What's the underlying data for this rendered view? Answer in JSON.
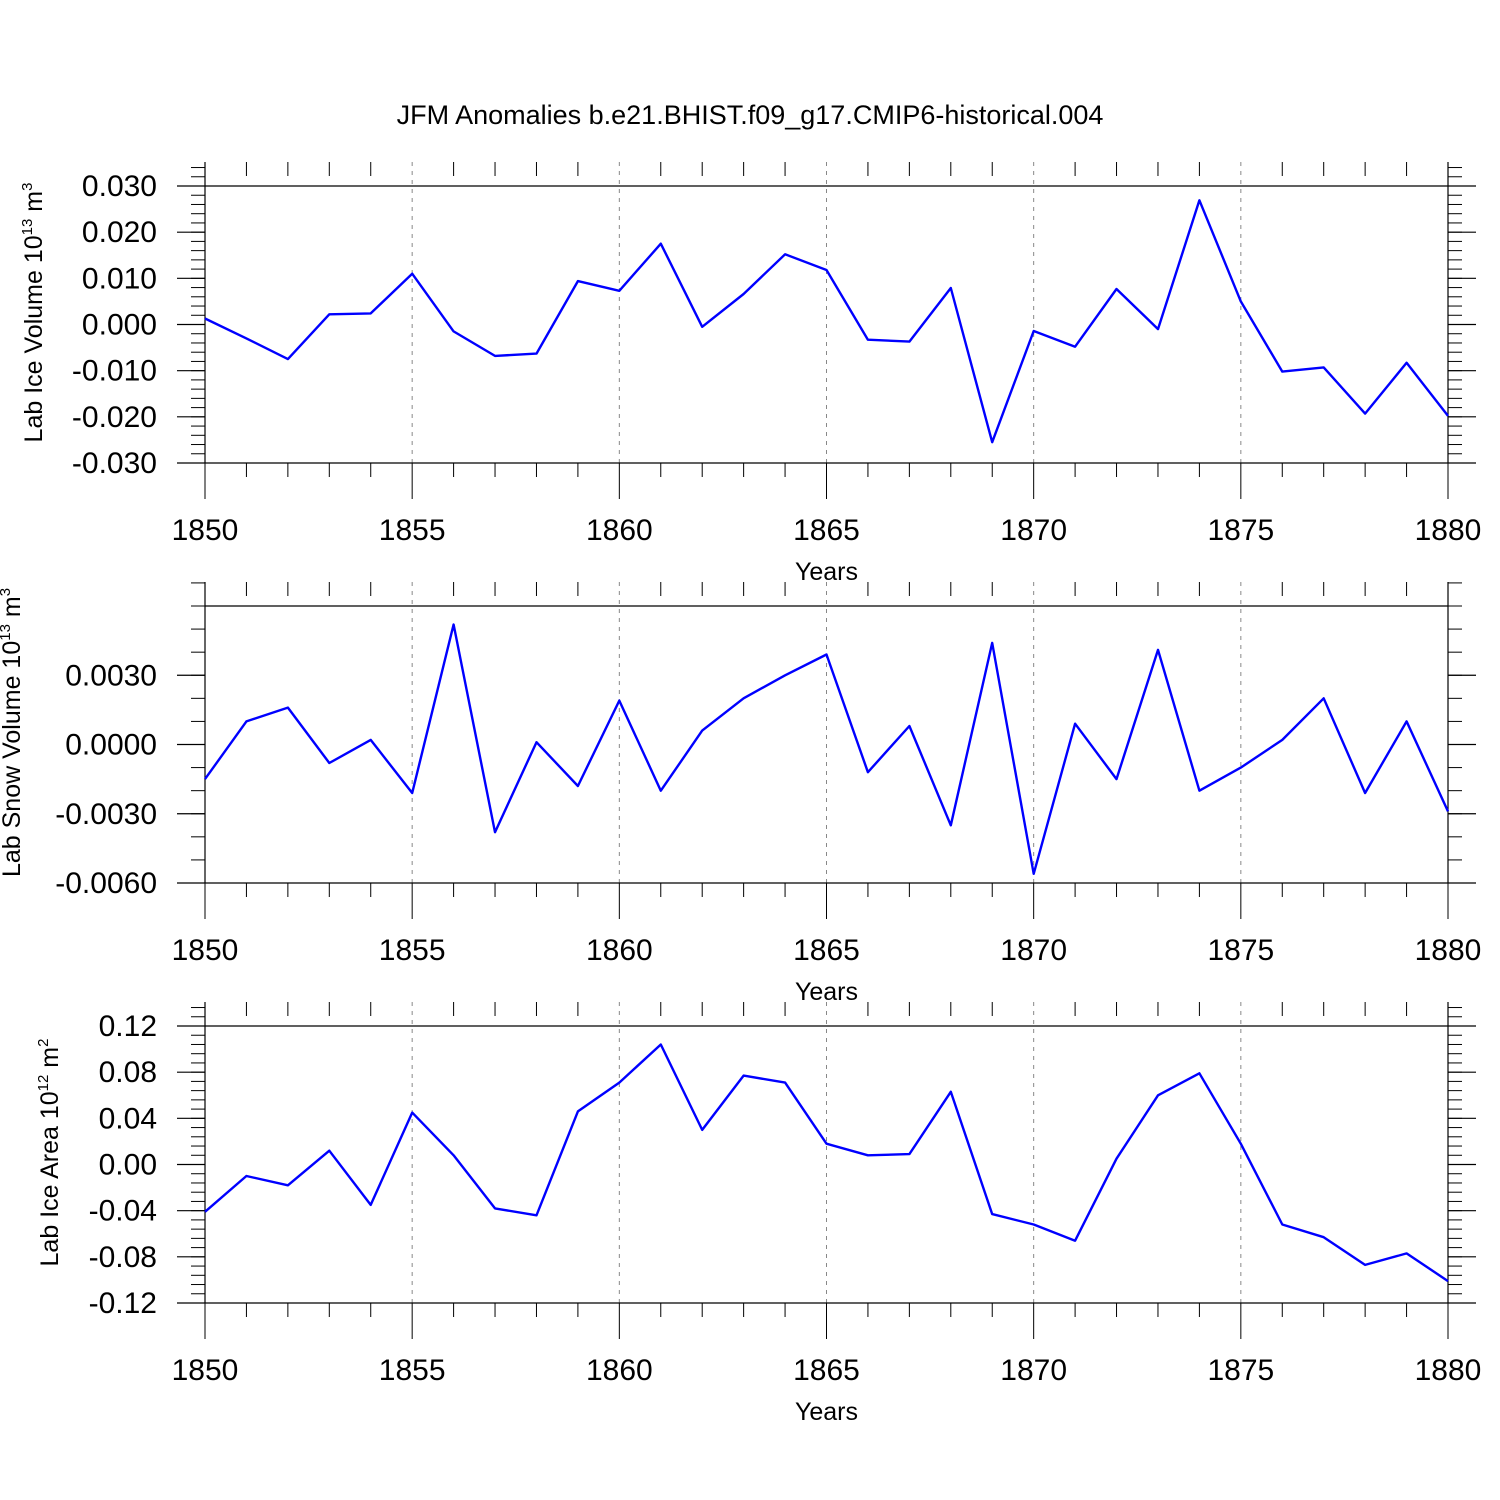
{
  "title": "JFM Anomalies b.e21.BHIST.f09_g17.CMIP6-historical.004",
  "colors": {
    "series": "#0000ff",
    "axis": "#000000",
    "gridline": "#888888"
  },
  "chart_data": [
    {
      "type": "line",
      "xlabel": "Years",
      "ylabel": {
        "text": "Lab Ice Volume 10",
        "exp": "13",
        "unit": " m",
        "unit_exp": "3"
      },
      "x": [
        1850,
        1851,
        1852,
        1853,
        1854,
        1855,
        1856,
        1857,
        1858,
        1859,
        1860,
        1861,
        1862,
        1863,
        1864,
        1865,
        1866,
        1867,
        1868,
        1869,
        1870,
        1871,
        1872,
        1873,
        1874,
        1875,
        1876,
        1877,
        1878,
        1879,
        1880
      ],
      "series": [
        {
          "values": [
            0.0013,
            -0.003,
            -0.0075,
            0.0022,
            0.0024,
            0.011,
            -0.0015,
            -0.0068,
            -0.0063,
            0.0094,
            0.0073,
            0.0175,
            -0.0005,
            0.0066,
            0.0152,
            0.0118,
            -0.0033,
            -0.0037,
            0.0079,
            -0.0255,
            -0.0014,
            -0.0048,
            0.0077,
            -0.001,
            0.0269,
            0.005,
            -0.0102,
            -0.0093,
            -0.0193,
            -0.0083,
            -0.0198
          ]
        }
      ],
      "xlim": [
        1850,
        1880
      ],
      "ylim": [
        -0.03,
        0.03
      ],
      "xticks": [
        "1850",
        "1855",
        "1860",
        "1865",
        "1870",
        "1875",
        "1880"
      ],
      "yticks": [
        "0.030",
        "0.020",
        "0.010",
        "0.000",
        "-0.010",
        "-0.020",
        "-0.030"
      ],
      "ytick_values": [
        0.03,
        0.02,
        0.01,
        0.0,
        -0.01,
        -0.02,
        -0.03
      ],
      "yminor_step": 0.002,
      "grid": "vertical dashed at labeled years"
    },
    {
      "type": "line",
      "xlabel": "Years",
      "ylabel": {
        "text": "Lab Snow Volume 10",
        "exp": "13",
        "unit": " m",
        "unit_exp": "3"
      },
      "x": [
        1850,
        1851,
        1852,
        1853,
        1854,
        1855,
        1856,
        1857,
        1858,
        1859,
        1860,
        1861,
        1862,
        1863,
        1864,
        1865,
        1866,
        1867,
        1868,
        1869,
        1870,
        1871,
        1872,
        1873,
        1874,
        1875,
        1876,
        1877,
        1878,
        1879,
        1880
      ],
      "series": [
        {
          "values": [
            -0.0015,
            0.001,
            0.0016,
            -0.0008,
            0.0002,
            -0.0021,
            0.0052,
            -0.0038,
            0.0001,
            -0.0018,
            0.0019,
            -0.002,
            0.0006,
            0.002,
            0.003,
            0.0039,
            -0.0012,
            0.0008,
            -0.0035,
            0.0044,
            -0.0056,
            0.0009,
            -0.0015,
            0.0041,
            -0.002,
            -0.001,
            0.0002,
            0.002,
            -0.0021,
            0.001,
            -0.0029
          ]
        }
      ],
      "xlim": [
        1850,
        1880
      ],
      "ylim": [
        -0.006,
        0.006
      ],
      "xticks": [
        "1850",
        "1855",
        "1860",
        "1865",
        "1870",
        "1875",
        "1880"
      ],
      "yticks": [
        "0.0030",
        "0.0000",
        "-0.0030",
        "-0.0060"
      ],
      "ytick_values": [
        0.003,
        0.0,
        -0.003,
        -0.006
      ],
      "yminor_step": 0.001,
      "grid": "vertical dashed at labeled years"
    },
    {
      "type": "line",
      "xlabel": "Years",
      "ylabel": {
        "text": "Lab Ice Area 10",
        "exp": "12",
        "unit": " m",
        "unit_exp": "2"
      },
      "x": [
        1850,
        1851,
        1852,
        1853,
        1854,
        1855,
        1856,
        1857,
        1858,
        1859,
        1860,
        1861,
        1862,
        1863,
        1864,
        1865,
        1866,
        1867,
        1868,
        1869,
        1870,
        1871,
        1872,
        1873,
        1874,
        1875,
        1876,
        1877,
        1878,
        1879,
        1880
      ],
      "series": [
        {
          "values": [
            -0.041,
            -0.01,
            -0.018,
            0.012,
            -0.035,
            0.045,
            0.008,
            -0.038,
            -0.044,
            0.046,
            0.071,
            0.104,
            0.03,
            0.077,
            0.071,
            0.018,
            0.008,
            0.009,
            0.063,
            -0.043,
            -0.052,
            -0.066,
            0.005,
            0.06,
            0.079,
            0.018,
            -0.052,
            -0.063,
            -0.087,
            -0.077,
            -0.101
          ]
        }
      ],
      "xlim": [
        1850,
        1880
      ],
      "ylim": [
        -0.12,
        0.12
      ],
      "xticks": [
        "1850",
        "1855",
        "1860",
        "1865",
        "1870",
        "1875",
        "1880"
      ],
      "yticks": [
        "0.12",
        "0.08",
        "0.04",
        "0.00",
        "-0.04",
        "-0.08",
        "-0.12"
      ],
      "ytick_values": [
        0.12,
        0.08,
        0.04,
        0.0,
        -0.04,
        -0.08,
        -0.12
      ],
      "yminor_step": 0.008,
      "grid": "vertical dashed at labeled years"
    }
  ]
}
